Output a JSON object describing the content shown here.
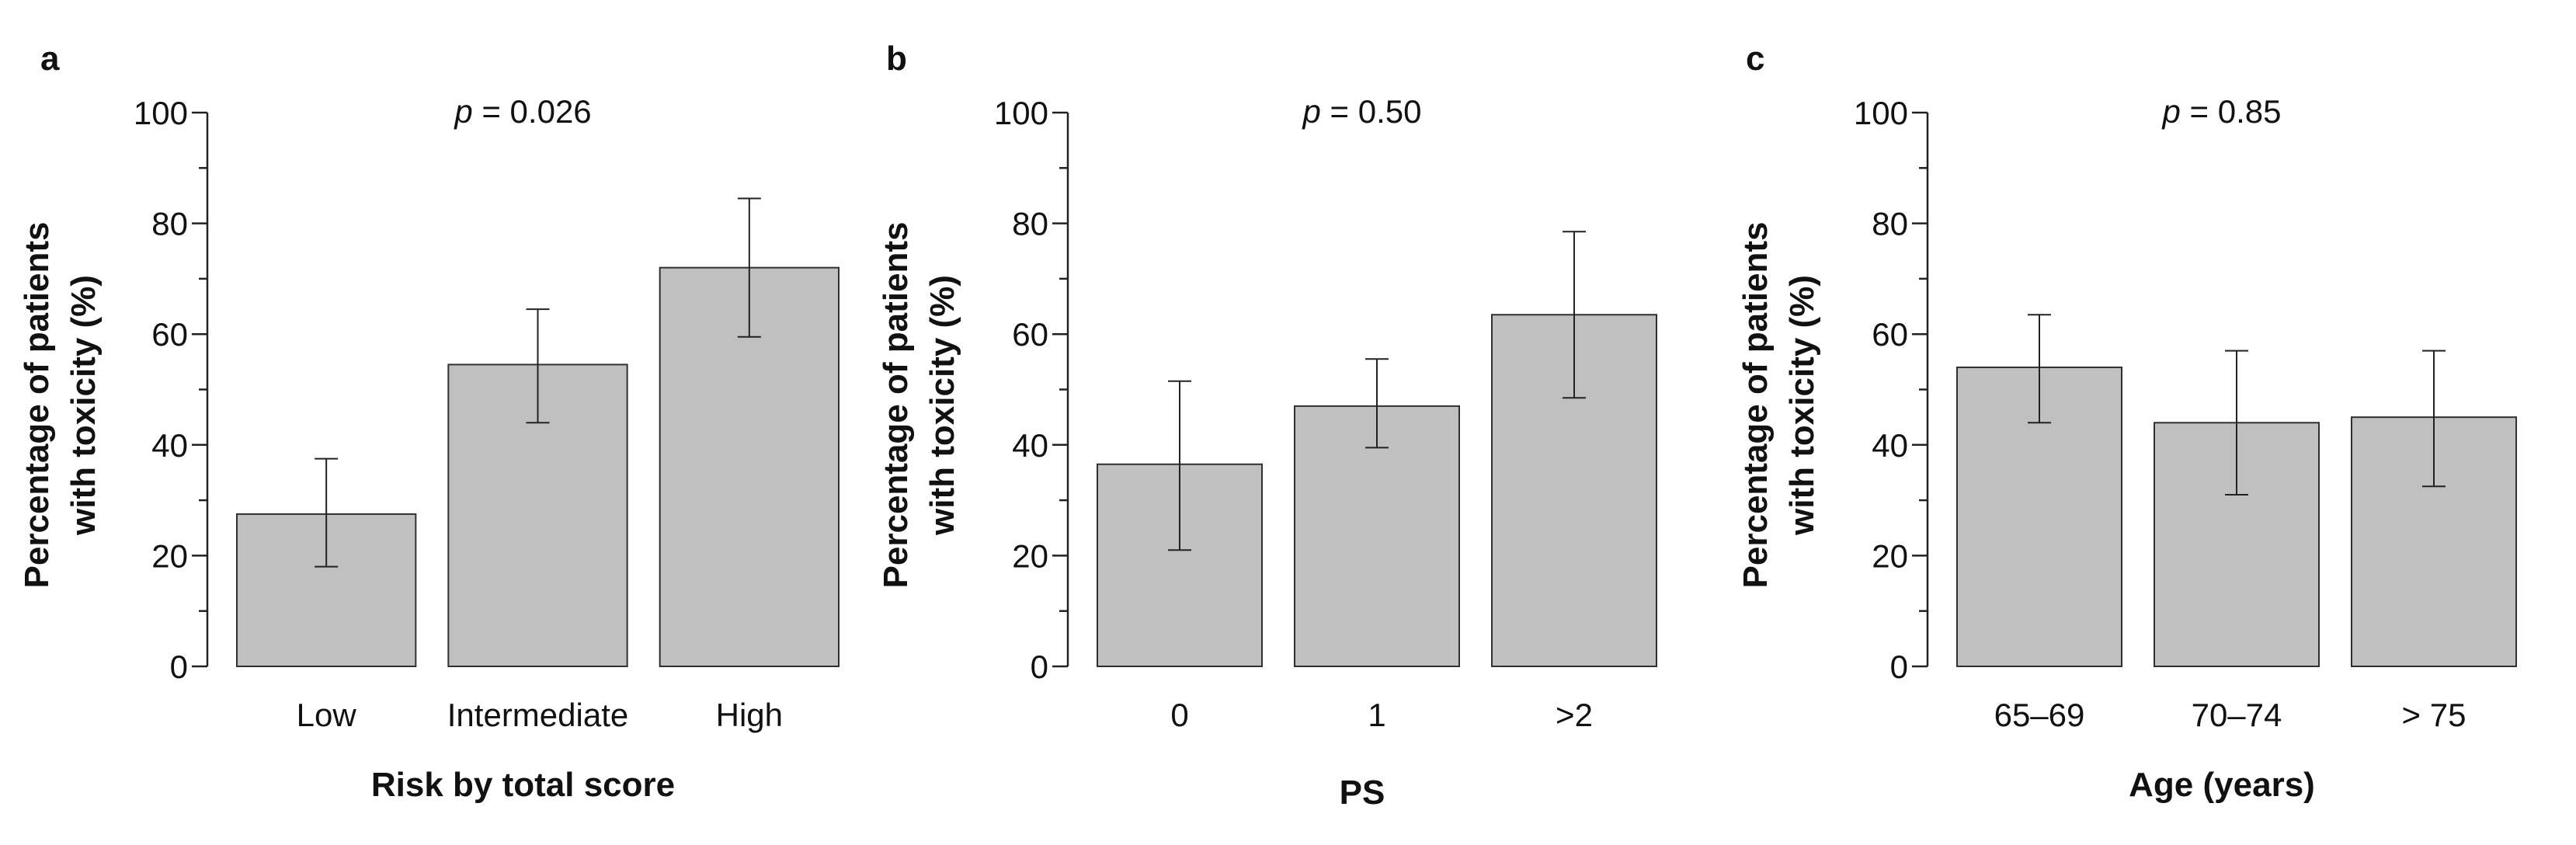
{
  "figure": {
    "colors": {
      "bar_fill": "#c0c0c0",
      "bar_stroke": "#303030",
      "axis": "#222222",
      "text": "#111111"
    }
  },
  "chart_data": [
    {
      "panel_label": "a",
      "type": "bar",
      "p_label": "p",
      "p_value": " = 0.026",
      "xlabel": "Risk by total score",
      "ylabel_line1": "Percentage of patients",
      "ylabel_line2": "with toxicity (%)",
      "ylim": [
        0,
        100
      ],
      "y_major_ticks": [
        "0",
        "20",
        "40",
        "60",
        "80",
        "100"
      ],
      "y_minor_ticks": [
        10,
        30,
        50,
        70,
        90
      ],
      "categories": [
        "Low",
        "Intermediate",
        "High"
      ],
      "values": [
        27.5,
        54.5,
        72
      ],
      "err_low": [
        18,
        44,
        59.5
      ],
      "err_high": [
        37.5,
        64.5,
        84.5
      ],
      "grid": false
    },
    {
      "panel_label": "b",
      "type": "bar",
      "p_label": "p",
      "p_value": " = 0.50",
      "xlabel": "PS",
      "ylabel_line1": "Percentage of patients",
      "ylabel_line2": "with toxicity (%)",
      "ylim": [
        0,
        100
      ],
      "y_major_ticks": [
        "0",
        "20",
        "40",
        "60",
        "80",
        "100"
      ],
      "y_minor_ticks": [
        10,
        30,
        50,
        70,
        90
      ],
      "categories": [
        "0",
        "1",
        ">2"
      ],
      "values": [
        36.5,
        47,
        63.5
      ],
      "err_low": [
        21,
        39.5,
        48.5
      ],
      "err_high": [
        51.5,
        55.5,
        78.5
      ],
      "grid": false
    },
    {
      "panel_label": "c",
      "type": "bar",
      "p_label": "p",
      "p_value": " = 0.85",
      "xlabel": "Age (years)",
      "ylabel_line1": "Percentage of patients",
      "ylabel_line2": "with toxicity (%)",
      "ylim": [
        0,
        100
      ],
      "y_major_ticks": [
        "0",
        "20",
        "40",
        "60",
        "80",
        "100"
      ],
      "y_minor_ticks": [
        10,
        30,
        50,
        70,
        90
      ],
      "categories": [
        "65–69",
        "70–74",
        "> 75"
      ],
      "values": [
        54,
        44,
        45
      ],
      "err_low": [
        44,
        31,
        32.5
      ],
      "err_high": [
        63.5,
        57,
        57
      ],
      "grid": false
    }
  ]
}
